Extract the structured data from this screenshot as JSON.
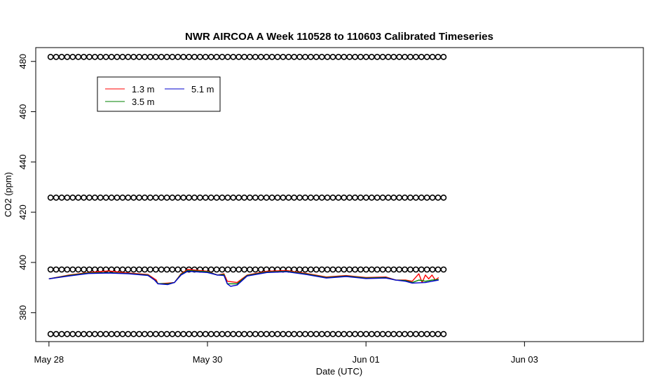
{
  "chart_data": {
    "type": "line",
    "title": "NWR AIRCOA A  Week 110528 to 110603  Calibrated Timeseries",
    "xlabel": "Date (UTC)",
    "ylabel": "CO2 (ppm)",
    "xlim": [
      "2011-05-27T20:00",
      "2011-06-04T12:00"
    ],
    "ylim": [
      368.5,
      485.5
    ],
    "x_ticks": [
      {
        "x": "2011-05-28T00:00",
        "label": "May 28"
      },
      {
        "x": "2011-05-30T00:00",
        "label": "May 30"
      },
      {
        "x": "2011-06-01T00:00",
        "label": "Jun 01"
      },
      {
        "x": "2011-06-03T00:00",
        "label": "Jun 03"
      }
    ],
    "y_ticks": [
      380,
      400,
      420,
      440,
      460,
      480
    ],
    "grid": false,
    "legend": {
      "position": "top-left",
      "entries": [
        {
          "label": "1.3 m",
          "color": "#ff0000"
        },
        {
          "label": "3.5 m",
          "color": "#008000"
        },
        {
          "label": "5.1 m",
          "color": "#0000cc"
        }
      ]
    },
    "series": [
      {
        "name": "1.3 m",
        "color": "#ff0000",
        "points": [
          [
            "2011-05-28T00:00",
            393.5
          ],
          [
            "2011-05-28T06:00",
            395.0
          ],
          [
            "2011-05-28T12:00",
            396.0
          ],
          [
            "2011-05-28T18:00",
            396.6
          ],
          [
            "2011-05-29T00:00",
            395.8
          ],
          [
            "2011-05-29T06:00",
            395.2
          ],
          [
            "2011-05-29T08:30",
            393.0
          ],
          [
            "2011-05-29T09:00",
            391.5
          ],
          [
            "2011-05-29T12:00",
            391.8
          ],
          [
            "2011-05-29T14:00",
            392.0
          ],
          [
            "2011-05-29T16:00",
            395.5
          ],
          [
            "2011-05-29T18:00",
            397.2
          ],
          [
            "2011-05-30T00:00",
            396.5
          ],
          [
            "2011-05-30T03:00",
            395.0
          ],
          [
            "2011-05-30T05:00",
            395.5
          ],
          [
            "2011-05-30T06:00",
            392.5
          ],
          [
            "2011-05-30T09:00",
            392.0
          ],
          [
            "2011-05-30T12:00",
            395.0
          ],
          [
            "2011-05-30T18:00",
            396.5
          ],
          [
            "2011-05-31T00:00",
            396.8
          ],
          [
            "2011-05-31T06:00",
            395.6
          ],
          [
            "2011-05-31T12:00",
            394.2
          ],
          [
            "2011-05-31T18:00",
            394.8
          ],
          [
            "2011-06-01T00:00",
            394.0
          ],
          [
            "2011-06-01T06:00",
            394.2
          ],
          [
            "2011-06-01T09:00",
            393.0
          ],
          [
            "2011-06-01T12:00",
            393.0
          ],
          [
            "2011-06-01T14:00",
            392.5
          ],
          [
            "2011-06-01T16:00",
            395.5
          ],
          [
            "2011-06-01T17:00",
            392.0
          ],
          [
            "2011-06-01T18:00",
            395.0
          ],
          [
            "2011-06-01T19:00",
            393.5
          ],
          [
            "2011-06-01T20:00",
            395.0
          ],
          [
            "2011-06-01T21:00",
            393.0
          ],
          [
            "2011-06-01T22:00",
            394.0
          ]
        ]
      },
      {
        "name": "3.5 m",
        "color": "#008000",
        "points": [
          [
            "2011-05-28T00:00",
            393.5
          ],
          [
            "2011-05-28T06:00",
            394.8
          ],
          [
            "2011-05-28T12:00",
            395.8
          ],
          [
            "2011-05-28T18:00",
            396.0
          ],
          [
            "2011-05-29T00:00",
            395.6
          ],
          [
            "2011-05-29T06:00",
            395.0
          ],
          [
            "2011-05-29T08:30",
            392.5
          ],
          [
            "2011-05-29T09:00",
            391.6
          ],
          [
            "2011-05-29T12:00",
            391.5
          ],
          [
            "2011-05-29T14:00",
            392.0
          ],
          [
            "2011-05-29T16:00",
            395.3
          ],
          [
            "2011-05-29T18:00",
            396.8
          ],
          [
            "2011-05-30T00:00",
            396.3
          ],
          [
            "2011-05-30T03:00",
            395.0
          ],
          [
            "2011-05-30T05:00",
            395.2
          ],
          [
            "2011-05-30T06:00",
            391.5
          ],
          [
            "2011-05-30T09:00",
            391.5
          ],
          [
            "2011-05-30T12:00",
            394.8
          ],
          [
            "2011-05-30T18:00",
            396.2
          ],
          [
            "2011-05-31T00:00",
            396.5
          ],
          [
            "2011-05-31T06:00",
            395.4
          ],
          [
            "2011-05-31T12:00",
            394.0
          ],
          [
            "2011-05-31T18:00",
            394.6
          ],
          [
            "2011-06-01T00:00",
            393.8
          ],
          [
            "2011-06-01T06:00",
            394.0
          ],
          [
            "2011-06-01T09:00",
            393.0
          ],
          [
            "2011-06-01T12:00",
            392.8
          ],
          [
            "2011-06-01T14:00",
            392.0
          ],
          [
            "2011-06-01T16:00",
            393.0
          ],
          [
            "2011-06-01T18:00",
            392.5
          ],
          [
            "2011-06-01T20:00",
            393.0
          ],
          [
            "2011-06-01T22:00",
            393.2
          ]
        ]
      },
      {
        "name": "5.1 m",
        "color": "#0000cc",
        "points": [
          [
            "2011-05-28T00:00",
            393.5
          ],
          [
            "2011-05-28T06:00",
            394.6
          ],
          [
            "2011-05-28T12:00",
            395.6
          ],
          [
            "2011-05-28T18:00",
            395.8
          ],
          [
            "2011-05-29T00:00",
            395.5
          ],
          [
            "2011-05-29T06:00",
            394.8
          ],
          [
            "2011-05-29T08:00",
            393.0
          ],
          [
            "2011-05-29T09:00",
            391.5
          ],
          [
            "2011-05-29T12:00",
            391.2
          ],
          [
            "2011-05-29T14:00",
            392.0
          ],
          [
            "2011-05-29T16:00",
            395.0
          ],
          [
            "2011-05-29T18:00",
            396.5
          ],
          [
            "2011-05-30T00:00",
            396.0
          ],
          [
            "2011-05-30T03:00",
            395.0
          ],
          [
            "2011-05-30T05:00",
            394.8
          ],
          [
            "2011-05-30T06:00",
            391.5
          ],
          [
            "2011-05-30T07:00",
            390.5
          ],
          [
            "2011-05-30T09:00",
            391.0
          ],
          [
            "2011-05-30T12:00",
            394.6
          ],
          [
            "2011-05-30T18:00",
            396.0
          ],
          [
            "2011-05-31T00:00",
            396.3
          ],
          [
            "2011-05-31T06:00",
            395.2
          ],
          [
            "2011-05-31T12:00",
            393.8
          ],
          [
            "2011-05-31T18:00",
            394.4
          ],
          [
            "2011-06-01T00:00",
            393.6
          ],
          [
            "2011-06-01T06:00",
            393.8
          ],
          [
            "2011-06-01T09:00",
            393.0
          ],
          [
            "2011-06-01T12:00",
            392.5
          ],
          [
            "2011-06-01T14:00",
            391.8
          ],
          [
            "2011-06-01T18:00",
            392.0
          ],
          [
            "2011-06-01T22:00",
            393.0
          ]
        ]
      }
    ],
    "reference_markers": {
      "name": "calibration standards",
      "marker": "open circle",
      "levels": [
        371.5,
        397.2,
        425.8,
        481.8
      ],
      "start": "2011-05-28T00:30",
      "end": "2011-06-01T23:30",
      "count_per_level": 72
    }
  }
}
